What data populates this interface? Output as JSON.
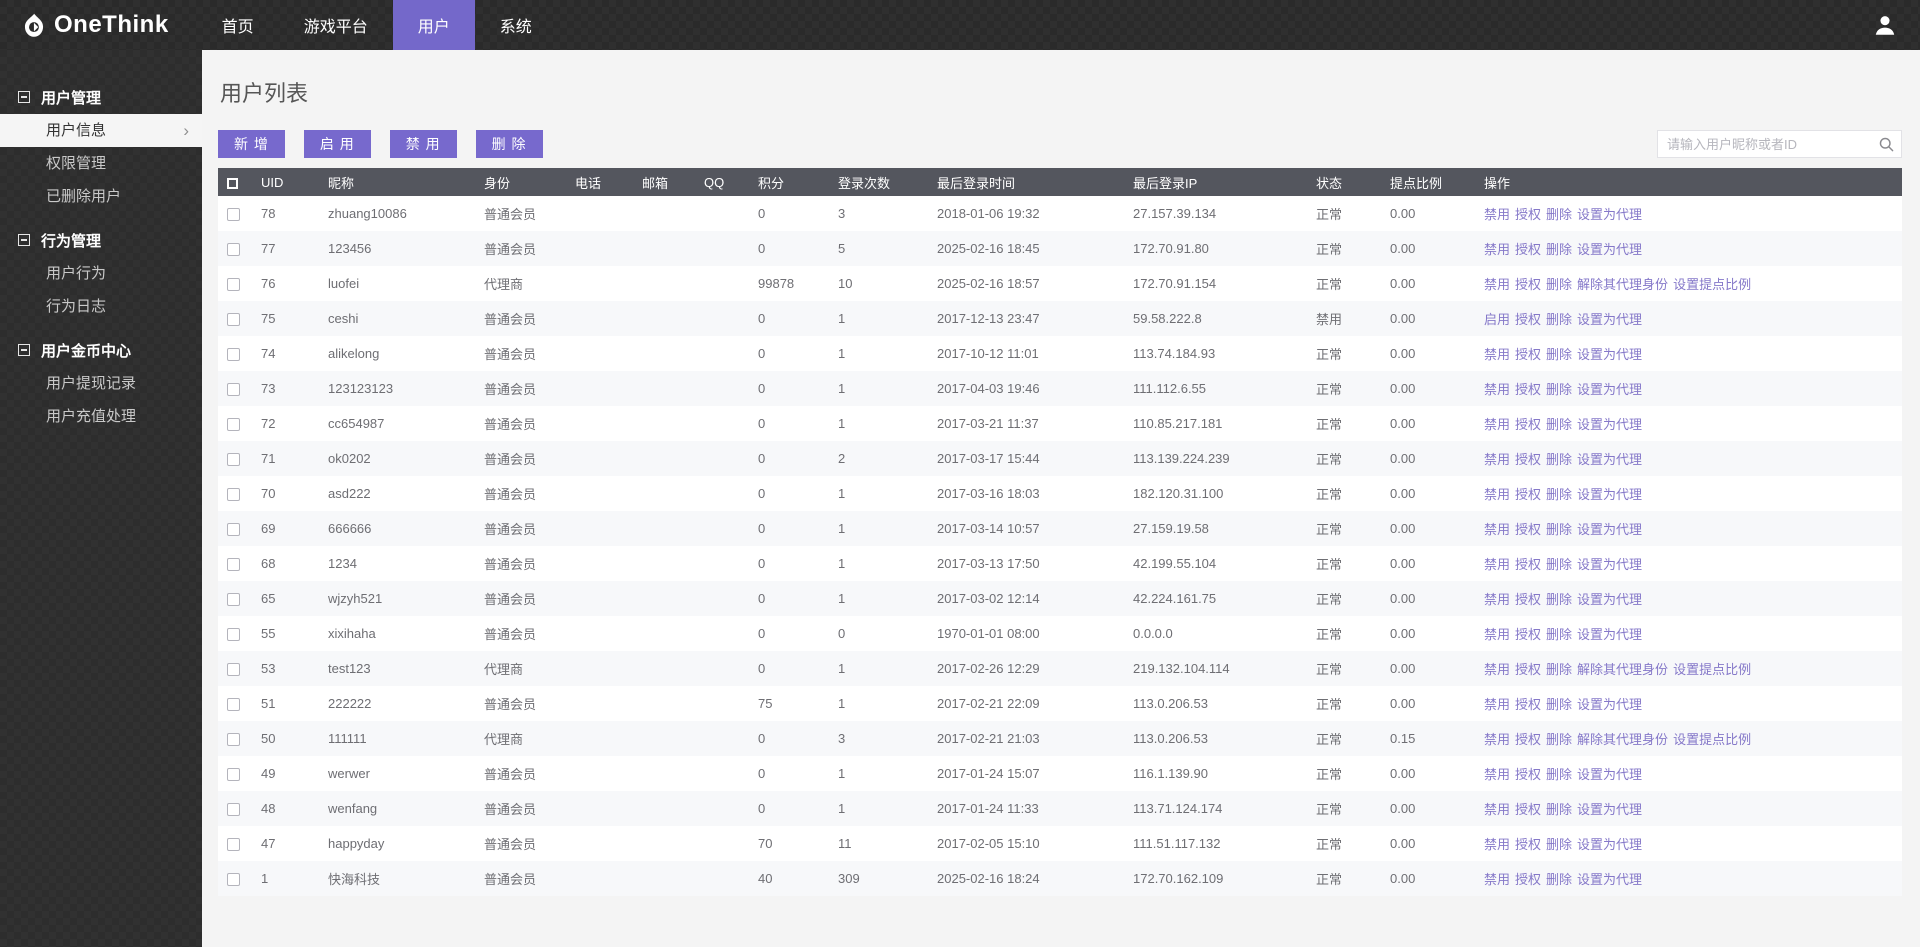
{
  "colors": {
    "navbar_bg": "#2a2a2a",
    "sidebar_bg": "#2d2d2d",
    "accent_purple": "#7468ca",
    "button_purple": "#7769cd",
    "link_purple": "#8578c9",
    "table_header_bg": "#54565e",
    "content_bg": "#f4f4f4"
  },
  "navbar": {
    "logo_text": "OneThink",
    "items": [
      {
        "label": "首页",
        "active": false
      },
      {
        "label": "游戏平台",
        "active": false
      },
      {
        "label": "用户",
        "active": true
      },
      {
        "label": "系统",
        "active": false
      }
    ]
  },
  "sidebar": {
    "sections": [
      {
        "title": "用户管理",
        "items": [
          {
            "label": "用户信息",
            "active": true
          },
          {
            "label": "权限管理",
            "active": false
          },
          {
            "label": "已删除用户",
            "active": false
          }
        ]
      },
      {
        "title": "行为管理",
        "items": [
          {
            "label": "用户行为",
            "active": false
          },
          {
            "label": "行为日志",
            "active": false
          }
        ]
      },
      {
        "title": "用户金币中心",
        "items": [
          {
            "label": "用户提现记录",
            "active": false
          },
          {
            "label": "用户充值处理",
            "active": false
          }
        ]
      }
    ]
  },
  "main": {
    "title": "用户列表",
    "toolbar": {
      "add": "新 增",
      "enable": "启 用",
      "disable": "禁 用",
      "delete": "删 除"
    },
    "search": {
      "placeholder": "请输入用户昵称或者ID",
      "icon": "search-icon"
    },
    "table": {
      "headers": [
        "UID",
        "昵称",
        "身份",
        "电话",
        "邮箱",
        "QQ",
        "积分",
        "登录次数",
        "最后登录时间",
        "最后登录IP",
        "状态",
        "提点比例",
        "操作"
      ],
      "rows": [
        {
          "uid": "78",
          "nickname": "zhuang10086",
          "role": "普通会员",
          "phone": "",
          "email": "",
          "qq": "",
          "points": "0",
          "logins": "3",
          "time": "2018-01-06 19:32",
          "ip": "27.157.39.134",
          "status": "正常",
          "ratio": "0.00",
          "actions": [
            "禁用",
            "授权",
            "删除",
            "设置为代理"
          ]
        },
        {
          "uid": "77",
          "nickname": "123456",
          "role": "普通会员",
          "phone": "",
          "email": "",
          "qq": "",
          "points": "0",
          "logins": "5",
          "time": "2025-02-16 18:45",
          "ip": "172.70.91.80",
          "status": "正常",
          "ratio": "0.00",
          "actions": [
            "禁用",
            "授权",
            "删除",
            "设置为代理"
          ]
        },
        {
          "uid": "76",
          "nickname": "luofei",
          "role": "代理商",
          "phone": "",
          "email": "",
          "qq": "",
          "points": "99878",
          "logins": "10",
          "time": "2025-02-16 18:57",
          "ip": "172.70.91.154",
          "status": "正常",
          "ratio": "0.00",
          "actions": [
            "禁用",
            "授权",
            "删除",
            "解除其代理身份",
            "设置提点比例"
          ]
        },
        {
          "uid": "75",
          "nickname": "ceshi",
          "role": "普通会员",
          "phone": "",
          "email": "",
          "qq": "",
          "points": "0",
          "logins": "1",
          "time": "2017-12-13 23:47",
          "ip": "59.58.222.8",
          "status": "禁用",
          "ratio": "0.00",
          "actions": [
            "启用",
            "授权",
            "删除",
            "设置为代理"
          ]
        },
        {
          "uid": "74",
          "nickname": "alikelong",
          "role": "普通会员",
          "phone": "",
          "email": "",
          "qq": "",
          "points": "0",
          "logins": "1",
          "time": "2017-10-12 11:01",
          "ip": "113.74.184.93",
          "status": "正常",
          "ratio": "0.00",
          "actions": [
            "禁用",
            "授权",
            "删除",
            "设置为代理"
          ]
        },
        {
          "uid": "73",
          "nickname": "123123123",
          "role": "普通会员",
          "phone": "",
          "email": "",
          "qq": "",
          "points": "0",
          "logins": "1",
          "time": "2017-04-03 19:46",
          "ip": "111.112.6.55",
          "status": "正常",
          "ratio": "0.00",
          "actions": [
            "禁用",
            "授权",
            "删除",
            "设置为代理"
          ]
        },
        {
          "uid": "72",
          "nickname": "cc654987",
          "role": "普通会员",
          "phone": "",
          "email": "",
          "qq": "",
          "points": "0",
          "logins": "1",
          "time": "2017-03-21 11:37",
          "ip": "110.85.217.181",
          "status": "正常",
          "ratio": "0.00",
          "actions": [
            "禁用",
            "授权",
            "删除",
            "设置为代理"
          ]
        },
        {
          "uid": "71",
          "nickname": "ok0202",
          "role": "普通会员",
          "phone": "",
          "email": "",
          "qq": "",
          "points": "0",
          "logins": "2",
          "time": "2017-03-17 15:44",
          "ip": "113.139.224.239",
          "status": "正常",
          "ratio": "0.00",
          "actions": [
            "禁用",
            "授权",
            "删除",
            "设置为代理"
          ]
        },
        {
          "uid": "70",
          "nickname": "asd222",
          "role": "普通会员",
          "phone": "",
          "email": "",
          "qq": "",
          "points": "0",
          "logins": "1",
          "time": "2017-03-16 18:03",
          "ip": "182.120.31.100",
          "status": "正常",
          "ratio": "0.00",
          "actions": [
            "禁用",
            "授权",
            "删除",
            "设置为代理"
          ]
        },
        {
          "uid": "69",
          "nickname": "666666",
          "role": "普通会员",
          "phone": "",
          "email": "",
          "qq": "",
          "points": "0",
          "logins": "1",
          "time": "2017-03-14 10:57",
          "ip": "27.159.19.58",
          "status": "正常",
          "ratio": "0.00",
          "actions": [
            "禁用",
            "授权",
            "删除",
            "设置为代理"
          ]
        },
        {
          "uid": "68",
          "nickname": "1234",
          "role": "普通会员",
          "phone": "",
          "email": "",
          "qq": "",
          "points": "0",
          "logins": "1",
          "time": "2017-03-13 17:50",
          "ip": "42.199.55.104",
          "status": "正常",
          "ratio": "0.00",
          "actions": [
            "禁用",
            "授权",
            "删除",
            "设置为代理"
          ]
        },
        {
          "uid": "65",
          "nickname": "wjzyh521",
          "role": "普通会员",
          "phone": "",
          "email": "",
          "qq": "",
          "points": "0",
          "logins": "1",
          "time": "2017-03-02 12:14",
          "ip": "42.224.161.75",
          "status": "正常",
          "ratio": "0.00",
          "actions": [
            "禁用",
            "授权",
            "删除",
            "设置为代理"
          ]
        },
        {
          "uid": "55",
          "nickname": "xixihaha",
          "role": "普通会员",
          "phone": "",
          "email": "",
          "qq": "",
          "points": "0",
          "logins": "0",
          "time": "1970-01-01 08:00",
          "ip": "0.0.0.0",
          "status": "正常",
          "ratio": "0.00",
          "actions": [
            "禁用",
            "授权",
            "删除",
            "设置为代理"
          ]
        },
        {
          "uid": "53",
          "nickname": "test123",
          "role": "代理商",
          "phone": "",
          "email": "",
          "qq": "",
          "points": "0",
          "logins": "1",
          "time": "2017-02-26 12:29",
          "ip": "219.132.104.114",
          "status": "正常",
          "ratio": "0.00",
          "actions": [
            "禁用",
            "授权",
            "删除",
            "解除其代理身份",
            "设置提点比例"
          ]
        },
        {
          "uid": "51",
          "nickname": "222222",
          "role": "普通会员",
          "phone": "",
          "email": "",
          "qq": "",
          "points": "75",
          "logins": "1",
          "time": "2017-02-21 22:09",
          "ip": "113.0.206.53",
          "status": "正常",
          "ratio": "0.00",
          "actions": [
            "禁用",
            "授权",
            "删除",
            "设置为代理"
          ]
        },
        {
          "uid": "50",
          "nickname": "111111",
          "role": "代理商",
          "phone": "",
          "email": "",
          "qq": "",
          "points": "0",
          "logins": "3",
          "time": "2017-02-21 21:03",
          "ip": "113.0.206.53",
          "status": "正常",
          "ratio": "0.15",
          "actions": [
            "禁用",
            "授权",
            "删除",
            "解除其代理身份",
            "设置提点比例"
          ]
        },
        {
          "uid": "49",
          "nickname": "werwer",
          "role": "普通会员",
          "phone": "",
          "email": "",
          "qq": "",
          "points": "0",
          "logins": "1",
          "time": "2017-01-24 15:07",
          "ip": "116.1.139.90",
          "status": "正常",
          "ratio": "0.00",
          "actions": [
            "禁用",
            "授权",
            "删除",
            "设置为代理"
          ]
        },
        {
          "uid": "48",
          "nickname": "wenfang",
          "role": "普通会员",
          "phone": "",
          "email": "",
          "qq": "",
          "points": "0",
          "logins": "1",
          "time": "2017-01-24 11:33",
          "ip": "113.71.124.174",
          "status": "正常",
          "ratio": "0.00",
          "actions": [
            "禁用",
            "授权",
            "删除",
            "设置为代理"
          ]
        },
        {
          "uid": "47",
          "nickname": "happyday",
          "role": "普通会员",
          "phone": "",
          "email": "",
          "qq": "",
          "points": "70",
          "logins": "11",
          "time": "2017-02-05 15:10",
          "ip": "111.51.117.132",
          "status": "正常",
          "ratio": "0.00",
          "actions": [
            "禁用",
            "授权",
            "删除",
            "设置为代理"
          ]
        },
        {
          "uid": "1",
          "nickname": "快海科技",
          "role": "普通会员",
          "phone": "",
          "email": "",
          "qq": "",
          "points": "40",
          "logins": "309",
          "time": "2025-02-16 18:24",
          "ip": "172.70.162.109",
          "status": "正常",
          "ratio": "0.00",
          "actions": [
            "禁用",
            "授权",
            "删除",
            "设置为代理"
          ]
        }
      ]
    }
  }
}
